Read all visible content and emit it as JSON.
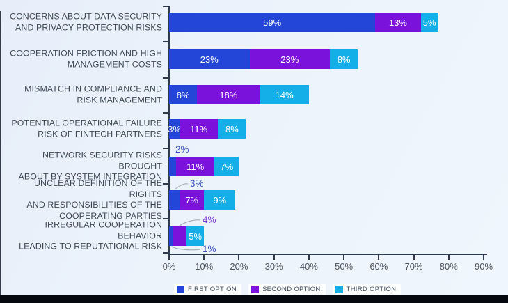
{
  "colors": {
    "first_option": "#2346D9",
    "second_option": "#7B12DC",
    "third_option": "#14AFE9",
    "axis": "#2E3B4F",
    "tick_text": "#4B5663",
    "category_text": "#3E4A57",
    "bar_value_text": "#FFFFFF",
    "outside_label_first": "#3D53C4",
    "outside_label_second": "#7E3FD1",
    "callout_line": "#A8B0BA",
    "background": "#ECF3FB",
    "bottom_strip": "#06080F"
  },
  "chart_data": {
    "type": "bar",
    "orientation": "horizontal",
    "stacked": true,
    "title": "",
    "xlabel": "",
    "ylabel": "",
    "xlim": [
      0,
      90
    ],
    "grid": false,
    "legend_position": "bottom",
    "x_ticks": [
      "0%",
      "10%",
      "20%",
      "30%",
      "40%",
      "50%",
      "60%",
      "70%",
      "80%",
      "90%"
    ],
    "categories": [
      "CONCERNS ABOUT DATA SECURITY AND PRIVACY PROTECTION RISKS",
      "COOPERATION FRICTION AND HIGH MANAGEMENT COSTS",
      "MISMATCH IN COMPLIANCE AND RISK MANAGEMENT",
      "POTENTIAL OPERATIONAL FAILURE RISK OF FINTECH PARTNERS",
      "NETWORK SECURITY RISKS BROUGHT ABOUT BY SYSTEM INTEGRATION",
      "UNCLEAR DEFINITION OF THE RIGHTS AND RESPONSIBILITIES OF THE COOPERATING PARTIES",
      "IRREGULAR COOPERATION BEHAVIOR LEADING TO REPUTATIONAL RISK"
    ],
    "category_lines": [
      [
        "CONCERNS ABOUT DATA SECURITY",
        "AND PRIVACY PROTECTION RISKS"
      ],
      [
        "COOPERATION FRICTION AND HIGH",
        "MANAGEMENT COSTS"
      ],
      [
        "MISMATCH IN COMPLIANCE AND",
        "RISK MANAGEMENT"
      ],
      [
        "POTENTIAL OPERATIONAL FAILURE",
        "RISK OF FINTECH PARTNERS"
      ],
      [
        "NETWORK SECURITY RISKS BROUGHT",
        "ABOUT BY SYSTEM INTEGRATION"
      ],
      [
        "UNCLEAR DEFINITION OF THE RIGHTS",
        "AND RESPONSIBILITIES OF THE",
        "COOPERATING PARTIES"
      ],
      [
        "IRREGULAR COOPERATION BEHAVIOR",
        "LEADING TO REPUTATIONAL RISK"
      ]
    ],
    "series": [
      {
        "name": "FIRST OPTION",
        "color": "#2346D9",
        "values": [
          59,
          23,
          8,
          3,
          2,
          3,
          1
        ]
      },
      {
        "name": "SECOND OPTION",
        "color": "#7B12DC",
        "values": [
          13,
          23,
          18,
          11,
          11,
          7,
          4
        ]
      },
      {
        "name": "THIRD OPTION",
        "color": "#14AFE9",
        "values": [
          5,
          8,
          14,
          8,
          7,
          9,
          5
        ]
      }
    ],
    "label_modes": [
      [
        "in",
        "in",
        "in"
      ],
      [
        "in",
        "in",
        "in"
      ],
      [
        "in",
        "in",
        "in"
      ],
      [
        "in",
        "in",
        "in"
      ],
      [
        "above",
        "in",
        "in"
      ],
      [
        "above-callout",
        "in",
        "in"
      ],
      [
        "below-callout",
        "above-callout",
        "in"
      ]
    ]
  },
  "legend": {
    "items": [
      {
        "label": "FIRST OPTION",
        "color": "#2346D9"
      },
      {
        "label": "SECOND OPTION",
        "color": "#7B12DC"
      },
      {
        "label": "THIRD OPTION",
        "color": "#14AFE9"
      }
    ]
  }
}
